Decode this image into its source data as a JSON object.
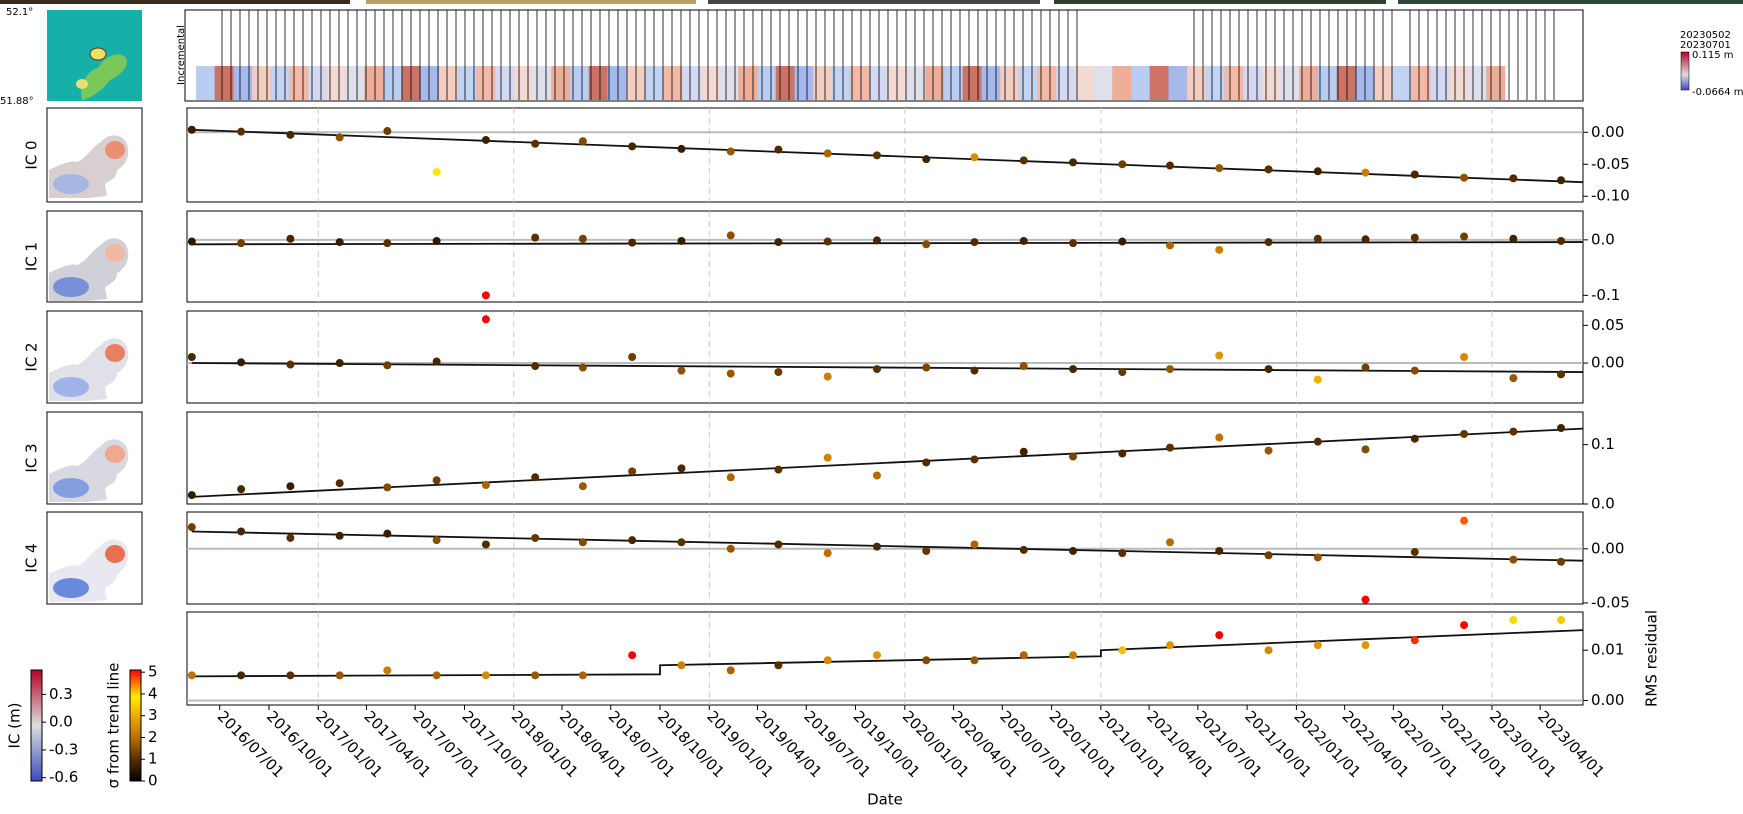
{
  "chart_data": {
    "type": "scatter",
    "xlabel": "Date",
    "xlim": [
      "2016/05/01",
      "2023/06/20"
    ],
    "xticks": [
      "2016/07/01",
      "2016/10/01",
      "2017/01/01",
      "2017/04/01",
      "2017/07/01",
      "2017/10/01",
      "2018/01/01",
      "2018/04/01",
      "2018/07/01",
      "2018/10/01",
      "2019/01/01",
      "2019/04/01",
      "2019/07/01",
      "2019/10/01",
      "2020/01/01",
      "2020/04/01",
      "2020/07/01",
      "2020/10/01",
      "2021/01/01",
      "2021/04/01",
      "2021/07/01",
      "2021/10/01",
      "2022/01/01",
      "2022/04/01",
      "2022/07/01",
      "2022/10/01",
      "2023/01/01",
      "2023/04/01"
    ],
    "x": [
      "2016/05/10",
      "2016/08/10",
      "2016/11/10",
      "2017/02/10",
      "2017/05/10",
      "2017/08/10",
      "2017/11/10",
      "2018/02/10",
      "2018/05/10",
      "2018/08/10",
      "2018/11/10",
      "2019/02/10",
      "2019/05/10",
      "2019/08/10",
      "2019/11/10",
      "2020/02/10",
      "2020/05/10",
      "2020/08/10",
      "2020/11/10",
      "2021/02/10",
      "2021/05/10",
      "2021/08/10",
      "2021/11/10",
      "2022/02/10",
      "2022/05/10",
      "2022/08/10",
      "2022/11/10",
      "2023/02/10",
      "2023/05/10"
    ],
    "incremental": {
      "label": "Incremental",
      "date_start": "20230502",
      "date_end": "20230701",
      "max_label": "0.115 m",
      "min_label": "-0.0664 m",
      "lat_top": "52.1°",
      "lat_bottom": "51.88°"
    },
    "panels": [
      {
        "label": "IC 0",
        "ylim": [
          -0.109,
          0.038
        ],
        "yticks": [
          {
            "value": 0,
            "label": "0.00"
          },
          -0.05,
          {
            "value": -0.1,
            "label": "-0.10"
          }
        ],
        "values": [
          0.004,
          0.001,
          -0.004,
          -0.008,
          0.002,
          -0.062,
          -0.012,
          -0.018,
          -0.014,
          -0.022,
          -0.026,
          -0.03,
          -0.027,
          -0.033,
          -0.036,
          -0.042,
          -0.039,
          -0.044,
          -0.047,
          -0.05,
          -0.052,
          -0.056,
          -0.058,
          -0.061,
          -0.063,
          -0.066,
          -0.071,
          -0.072,
          -0.075
        ],
        "sigma": [
          0.6,
          1,
          0.8,
          1.5,
          1.2,
          3.8,
          0.7,
          1,
          1.4,
          0.8,
          0.6,
          1.6,
          0.9,
          1.8,
          1,
          0.7,
          2.5,
          1,
          0.8,
          1.2,
          0.9,
          1.6,
          1,
          0.7,
          2.2,
          0.8,
          1.5,
          0.9,
          0.7
        ],
        "trend": {
          "x": [
            "2016/05/10",
            "2023/06/20"
          ],
          "values": [
            0.004,
            -0.078
          ]
        }
      },
      {
        "label": "IC 1",
        "ylim": [
          -0.112,
          0.052
        ],
        "yticks": [
          {
            "value": 0,
            "label": "0.0"
          },
          -0.1
        ],
        "values": [
          -0.003,
          -0.006,
          0.002,
          -0.004,
          -0.006,
          -0.002,
          -0.1,
          0.004,
          0.002,
          -0.005,
          -0.002,
          0.008,
          -0.004,
          -0.003,
          -0.001,
          -0.008,
          -0.004,
          -0.002,
          -0.006,
          -0.003,
          -0.01,
          -0.018,
          -0.004,
          0.002,
          0.001,
          0.004,
          0.006,
          0.002,
          -0.002
        ],
        "sigma": [
          0.5,
          1.2,
          0.8,
          0.6,
          1,
          0.5,
          5,
          1,
          1.3,
          0.8,
          0.6,
          1.5,
          0.7,
          1,
          0.8,
          1.4,
          0.9,
          0.7,
          1,
          0.6,
          1.8,
          2.2,
          0.9,
          1,
          0.8,
          1,
          1.2,
          0.7,
          0.9
        ],
        "trend": {
          "x": [
            "2016/05/10",
            "2023/06/20"
          ],
          "values": [
            -0.008,
            -0.004
          ]
        }
      },
      {
        "label": "IC 2",
        "ylim": [
          -0.053,
          0.069
        ],
        "yticks": [
          0.05,
          {
            "value": 0,
            "label": "0.00"
          }
        ],
        "values": [
          0.008,
          0.001,
          -0.002,
          0.0,
          -0.003,
          0.002,
          0.058,
          -0.004,
          -0.006,
          0.008,
          -0.01,
          -0.014,
          -0.012,
          -0.018,
          -0.008,
          -0.006,
          -0.01,
          -0.004,
          -0.008,
          -0.012,
          -0.008,
          0.01,
          -0.008,
          -0.022,
          -0.006,
          -0.01,
          0.008,
          -0.02,
          -0.015
        ],
        "sigma": [
          0.8,
          0.6,
          1,
          0.7,
          1.2,
          0.8,
          5,
          0.9,
          1.4,
          1.2,
          1.5,
          1.6,
          1.2,
          2.2,
          1,
          1.3,
          0.9,
          1.5,
          0.8,
          1.1,
          1.6,
          2.6,
          0.8,
          3,
          1.2,
          1.4,
          2.4,
          1.6,
          1
        ],
        "trend": {
          "x": [
            "2016/05/10",
            "2023/06/20"
          ],
          "values": [
            0.0,
            -0.012
          ]
        }
      },
      {
        "label": "IC 3",
        "ylim": [
          0,
          0.155
        ],
        "yticks": [
          0.1,
          {
            "value": 0,
            "label": "0.0"
          }
        ],
        "values": [
          0.015,
          0.025,
          0.03,
          0.035,
          0.028,
          0.04,
          0.032,
          0.045,
          0.03,
          0.055,
          0.06,
          0.045,
          0.058,
          0.078,
          0.048,
          0.07,
          0.075,
          0.088,
          0.08,
          0.085,
          0.095,
          0.112,
          0.09,
          0.105,
          0.092,
          0.11,
          0.118,
          0.122,
          0.128
        ],
        "sigma": [
          0.6,
          0.8,
          0.6,
          0.9,
          1.4,
          1.2,
          1.8,
          0.9,
          1.6,
          1.2,
          0.8,
          1.8,
          1,
          2.3,
          1.9,
          0.9,
          1,
          0.7,
          1.3,
          0.8,
          1,
          2,
          1.6,
          0.9,
          1.4,
          0.8,
          1.1,
          1,
          0.7
        ],
        "trend": {
          "x": [
            "2016/05/10",
            "2023/06/20"
          ],
          "values": [
            0.012,
            0.127
          ]
        }
      },
      {
        "label": "IC 4",
        "ylim": [
          -0.051,
          0.034
        ],
        "yticks": [
          {
            "value": 0,
            "label": "0.00"
          },
          -0.05
        ],
        "values": [
          0.02,
          0.016,
          0.01,
          0.012,
          0.014,
          0.008,
          0.004,
          0.01,
          0.006,
          0.008,
          0.006,
          0.0,
          0.004,
          -0.004,
          0.002,
          -0.002,
          0.004,
          -0.001,
          -0.002,
          -0.004,
          0.006,
          -0.002,
          -0.006,
          -0.008,
          -0.047,
          -0.003,
          0.026,
          -0.01,
          -0.012
        ],
        "sigma": [
          1.2,
          0.8,
          1,
          0.7,
          0.6,
          1.5,
          0.9,
          1.1,
          1.4,
          0.8,
          1,
          1.6,
          0.9,
          2,
          0.8,
          1.1,
          1.8,
          0.9,
          0.7,
          1,
          1.9,
          0.8,
          1.2,
          1.6,
          5,
          1,
          4.6,
          1.5,
          1.2
        ],
        "trend": {
          "x": [
            "2016/05/10",
            "2023/06/20"
          ],
          "values": [
            0.016,
            -0.011
          ]
        }
      },
      {
        "label": "RMS residual",
        "ylim": [
          -0.0009,
          0.0176
        ],
        "yticks": [
          0.01,
          {
            "value": 0,
            "label": "0.00"
          }
        ],
        "values": [
          0.005,
          0.005,
          0.005,
          0.005,
          0.006,
          0.005,
          0.005,
          0.005,
          0.005,
          0.009,
          0.007,
          0.006,
          0.007,
          0.008,
          0.009,
          0.008,
          0.008,
          0.009,
          0.009,
          0.01,
          0.011,
          0.013,
          0.01,
          0.011,
          0.011,
          0.012,
          0.015,
          0.016,
          0.016
        ],
        "sigma": [
          2,
          0.8,
          1,
          1.6,
          2.2,
          1.8,
          2.4,
          1.6,
          1.8,
          5,
          2.2,
          1.8,
          1,
          2.4,
          2.6,
          1.4,
          1.6,
          1.8,
          2.2,
          3.2,
          2.6,
          5,
          2.4,
          2.6,
          2.6,
          4.8,
          5,
          3.6,
          3.4
        ],
        "trend": {
          "x": [
            "2016/05/10",
            "2018/10/01",
            "2018/10/01",
            "2021/01/01",
            "2021/01/01",
            "2023/06/20"
          ],
          "values": [
            0.0048,
            0.0052,
            0.007,
            0.0088,
            0.01,
            0.014
          ]
        }
      }
    ],
    "colorbars": [
      {
        "label": "IC (m)",
        "ylim": [
          -0.636,
          0.564
        ],
        "yticks": [
          0.3,
          {
            "value": 0,
            "label": "0.0"
          },
          -0.3,
          -0.6
        ]
      },
      {
        "label": "σ from trend line",
        "ylim": [
          0,
          5.1
        ],
        "yticks": [
          5,
          4,
          3,
          2,
          1,
          0
        ]
      }
    ]
  }
}
